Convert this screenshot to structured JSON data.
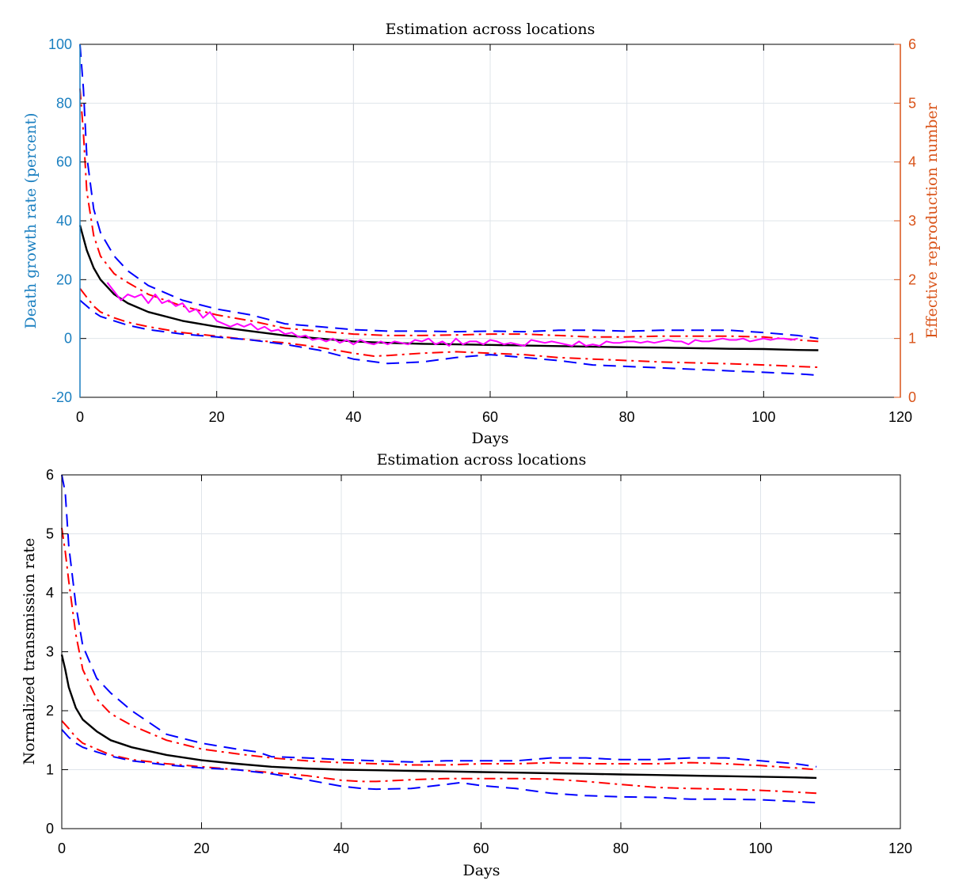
{
  "chart_data": [
    {
      "type": "line",
      "title": "Estimation across locations",
      "xlabel": "Days",
      "ylabel": "Death growth rate (percent)",
      "ylabel_right": "Effective reproduction number",
      "xlim": [
        0,
        120
      ],
      "ylim": [
        -20,
        100
      ],
      "ylim_right": [
        0,
        6
      ],
      "xticks": [
        0,
        20,
        40,
        60,
        80,
        100,
        120
      ],
      "yticks": [
        -20,
        0,
        20,
        40,
        60,
        80,
        100
      ],
      "yticks_right": [
        0,
        1,
        2,
        3,
        4,
        5,
        6
      ],
      "grid": true,
      "colors": {
        "left_axis": "#1a7fc0",
        "right_axis": "#d95319"
      },
      "series": [
        {
          "color": "#0000ff",
          "style": "dashed",
          "x": [
            0,
            0.5,
            1,
            2,
            3,
            5,
            7,
            10,
            15,
            20,
            25,
            30,
            35,
            40,
            45,
            50,
            55,
            60,
            65,
            70,
            75,
            80,
            85,
            90,
            95,
            100,
            105,
            108
          ],
          "y": [
            100,
            85,
            62,
            44,
            36,
            28,
            23,
            18,
            13,
            10,
            8,
            5,
            4,
            3,
            2.5,
            2.5,
            2.3,
            2.5,
            2.3,
            2.8,
            2.8,
            2.5,
            2.8,
            2.8,
            2.8,
            2,
            1,
            0
          ]
        },
        {
          "color": "#ff0000",
          "style": "dashdot",
          "x": [
            0,
            0.5,
            1,
            2,
            3,
            5,
            7,
            10,
            15,
            20,
            25,
            30,
            35,
            40,
            45,
            50,
            55,
            60,
            65,
            70,
            75,
            80,
            85,
            90,
            95,
            100,
            105,
            108
          ],
          "y": [
            85,
            70,
            50,
            35,
            28,
            22,
            19,
            15,
            11,
            8,
            6,
            3.5,
            2.5,
            1.5,
            1,
            1,
            1.2,
            1.5,
            1.5,
            1,
            0.5,
            0.5,
            0.8,
            0.8,
            0.8,
            0.5,
            -0.5,
            -1
          ]
        },
        {
          "color": "#000000",
          "style": "solid",
          "x": [
            0,
            1,
            2,
            3,
            5,
            7,
            10,
            15,
            20,
            25,
            30,
            35,
            40,
            45,
            50,
            55,
            60,
            65,
            70,
            75,
            80,
            85,
            90,
            95,
            100,
            105,
            108
          ],
          "y": [
            38.5,
            30,
            24,
            20,
            15,
            12,
            9,
            6,
            4,
            2.5,
            1,
            0,
            -1,
            -1.5,
            -1.8,
            -2,
            -2.2,
            -2.4,
            -2.6,
            -2.8,
            -3,
            -3.1,
            -3.3,
            -3.5,
            -3.6,
            -3.9,
            -4
          ]
        },
        {
          "color": "#ff0000",
          "style": "dashdot",
          "x": [
            0,
            1,
            2,
            3,
            5,
            7,
            10,
            15,
            20,
            25,
            30,
            35,
            40,
            43,
            45,
            50,
            55,
            60,
            65,
            70,
            75,
            80,
            85,
            90,
            95,
            100,
            105,
            108
          ],
          "y": [
            17,
            14,
            11,
            9,
            7,
            5.5,
            4,
            2,
            0.8,
            -0.5,
            -1.5,
            -3,
            -5,
            -6,
            -5.8,
            -5,
            -4.5,
            -5,
            -5.5,
            -6.5,
            -7,
            -7.5,
            -8,
            -8.3,
            -8.6,
            -9,
            -9.5,
            -9.8
          ]
        },
        {
          "color": "#0000ff",
          "style": "dashed",
          "x": [
            0,
            1,
            2,
            3,
            5,
            7,
            10,
            15,
            20,
            25,
            30,
            35,
            40,
            45,
            50,
            55,
            60,
            65,
            70,
            75,
            80,
            85,
            90,
            95,
            100,
            105,
            108
          ],
          "y": [
            13,
            11,
            9,
            7.5,
            6,
            4.5,
            3,
            1.5,
            0.5,
            -0.5,
            -2,
            -4,
            -7,
            -8.5,
            -8,
            -6.5,
            -5.5,
            -6.5,
            -7.5,
            -9,
            -9.5,
            -10,
            -10.5,
            -11,
            -11.5,
            -12,
            -12.5
          ]
        },
        {
          "color": "#ff00ff",
          "style": "solid",
          "x": [
            4,
            5,
            6,
            7,
            8,
            9,
            10,
            11,
            12,
            13,
            14,
            15,
            16,
            17,
            18,
            19,
            20,
            21,
            22,
            23,
            24,
            25,
            26,
            27,
            28,
            29,
            30,
            31,
            32,
            33,
            34,
            35,
            36,
            37,
            38,
            39,
            40,
            41,
            42,
            43,
            44,
            45,
            46,
            47,
            48,
            49,
            50,
            51,
            52,
            53,
            54,
            55,
            56,
            57,
            58,
            59,
            60,
            61,
            62,
            63,
            64,
            65,
            66,
            67,
            68,
            69,
            70,
            71,
            72,
            73,
            74,
            75,
            76,
            77,
            78,
            79,
            80,
            81,
            82,
            83,
            84,
            85,
            86,
            87,
            88,
            89,
            90,
            91,
            92,
            93,
            94,
            95,
            96,
            97,
            98,
            99,
            100,
            101,
            102,
            103,
            104,
            105
          ],
          "y": [
            19,
            16,
            13,
            15,
            14,
            15,
            12,
            15,
            12,
            13,
            11,
            12,
            9,
            10,
            7,
            9,
            6,
            5,
            4,
            5,
            4,
            5,
            3,
            4,
            2.5,
            3,
            1.5,
            2,
            0.5,
            1,
            -0.5,
            0,
            -1,
            0,
            -1.5,
            -0.5,
            -2,
            -0.5,
            -1.5,
            -2,
            -1,
            -2,
            -1,
            -1.5,
            -2,
            -0.5,
            -1,
            0,
            -2,
            -1,
            -2.5,
            0,
            -2,
            -1,
            -1,
            -2,
            -0.5,
            -1,
            -2,
            -1.5,
            -2,
            -2.5,
            -0.5,
            -1,
            -1.5,
            -1,
            -1.5,
            -2,
            -2.5,
            -1,
            -2.5,
            -2,
            -2.5,
            -1,
            -1.5,
            -1.5,
            -1,
            -1,
            -1.5,
            -1,
            -1.5,
            -1,
            -0.5,
            -1,
            -1,
            -2,
            -0.5,
            -1,
            -1,
            -0.5,
            0,
            -0.5,
            -0.5,
            0,
            -1,
            -0.5,
            0,
            -0.5,
            0,
            0,
            -0.5,
            0
          ]
        }
      ]
    },
    {
      "type": "line",
      "title": "Estimation across locations",
      "xlabel": "Days",
      "ylabel": "Normalized transmission rate",
      "xlim": [
        0,
        120
      ],
      "ylim": [
        0,
        6
      ],
      "xticks": [
        0,
        20,
        40,
        60,
        80,
        100,
        120
      ],
      "yticks": [
        0,
        1,
        2,
        3,
        4,
        5,
        6
      ],
      "grid": true,
      "series": [
        {
          "color": "#0000ff",
          "style": "dashed",
          "x": [
            0,
            0.5,
            1,
            2,
            3,
            5,
            7,
            10,
            15,
            20,
            25,
            28,
            30,
            35,
            40,
            45,
            50,
            55,
            60,
            65,
            70,
            75,
            80,
            85,
            90,
            95,
            100,
            105,
            108
          ],
          "y": [
            6,
            5.7,
            4.8,
            3.8,
            3.1,
            2.55,
            2.3,
            2,
            1.6,
            1.45,
            1.35,
            1.3,
            1.22,
            1.2,
            1.17,
            1.15,
            1.13,
            1.15,
            1.15,
            1.15,
            1.2,
            1.2,
            1.17,
            1.17,
            1.2,
            1.2,
            1.15,
            1.1,
            1.05
          ]
        },
        {
          "color": "#ff0000",
          "style": "dashdot",
          "x": [
            0,
            0.5,
            1,
            2,
            3,
            5,
            7,
            10,
            15,
            20,
            25,
            30,
            35,
            40,
            45,
            50,
            55,
            60,
            65,
            70,
            75,
            80,
            85,
            90,
            95,
            100,
            105,
            108
          ],
          "y": [
            5.1,
            4.7,
            4.2,
            3.3,
            2.7,
            2.2,
            1.95,
            1.75,
            1.5,
            1.35,
            1.27,
            1.2,
            1.15,
            1.12,
            1.1,
            1.08,
            1.08,
            1.1,
            1.1,
            1.12,
            1.1,
            1.1,
            1.1,
            1.12,
            1.1,
            1.07,
            1.03,
            1
          ]
        },
        {
          "color": "#000000",
          "style": "solid",
          "x": [
            0,
            0.5,
            1,
            2,
            3,
            5,
            7,
            10,
            15,
            20,
            25,
            30,
            35,
            40,
            45,
            50,
            55,
            60,
            65,
            70,
            75,
            80,
            85,
            90,
            95,
            100,
            105,
            108
          ],
          "y": [
            2.95,
            2.7,
            2.4,
            2.05,
            1.85,
            1.65,
            1.5,
            1.38,
            1.25,
            1.16,
            1.1,
            1.05,
            1.02,
            1,
            0.99,
            0.98,
            0.97,
            0.96,
            0.95,
            0.94,
            0.93,
            0.92,
            0.91,
            0.9,
            0.89,
            0.88,
            0.87,
            0.86
          ]
        },
        {
          "color": "#ff0000",
          "style": "dashdot",
          "x": [
            0,
            1,
            2,
            3,
            5,
            7,
            10,
            15,
            20,
            25,
            30,
            35,
            40,
            43,
            45,
            50,
            55,
            60,
            65,
            70,
            75,
            80,
            85,
            90,
            95,
            100,
            105,
            108
          ],
          "y": [
            1.83,
            1.7,
            1.55,
            1.45,
            1.35,
            1.25,
            1.17,
            1.1,
            1.05,
            1,
            0.95,
            0.9,
            0.82,
            0.8,
            0.8,
            0.83,
            0.85,
            0.85,
            0.85,
            0.84,
            0.8,
            0.75,
            0.7,
            0.68,
            0.67,
            0.65,
            0.62,
            0.6
          ]
        },
        {
          "color": "#0000ff",
          "style": "dashed",
          "x": [
            0,
            1,
            2,
            3,
            5,
            7,
            10,
            15,
            20,
            25,
            30,
            35,
            40,
            43,
            45,
            50,
            55,
            57,
            60,
            65,
            70,
            75,
            80,
            85,
            90,
            95,
            100,
            105,
            108
          ],
          "y": [
            1.68,
            1.55,
            1.45,
            1.38,
            1.3,
            1.23,
            1.15,
            1.08,
            1.03,
            1,
            0.93,
            0.83,
            0.72,
            0.68,
            0.67,
            0.68,
            0.75,
            0.78,
            0.73,
            0.68,
            0.6,
            0.56,
            0.54,
            0.53,
            0.5,
            0.5,
            0.49,
            0.46,
            0.44
          ]
        }
      ]
    }
  ]
}
